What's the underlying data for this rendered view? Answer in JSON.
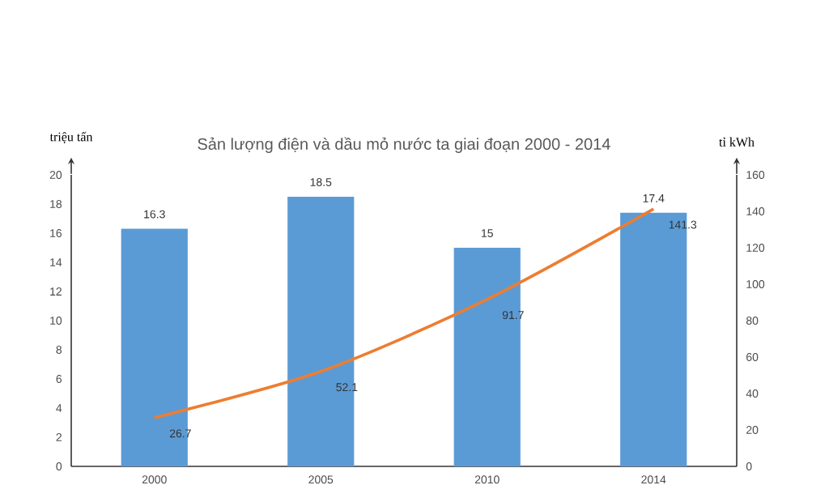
{
  "chart_data": {
    "type": "bar",
    "title": "Sản lượng điện và dầu mỏ nước ta giai đoạn 2000 - 2014",
    "ylabel": "triệu tấn",
    "y2label": "tỉ kWh",
    "categories": [
      "2000",
      "2005",
      "2010",
      "2014"
    ],
    "series": [
      {
        "color": "#5b9bd5",
        "values": [
          16.3,
          18.5,
          15,
          17.4
        ]
      },
      {
        "type": "line",
        "color": "#ed7d31",
        "axis": "y2",
        "values": [
          26.7,
          52.1,
          91.7,
          141.3
        ]
      }
    ],
    "ylim": [
      0,
      20
    ],
    "yticks": [
      0,
      2,
      4,
      6,
      8,
      10,
      12,
      14,
      16,
      18,
      20
    ],
    "y2lim": [
      0,
      160
    ],
    "y2ticks": [
      0,
      20,
      40,
      60,
      80,
      100,
      120,
      140,
      160
    ],
    "data_labels": true
  }
}
